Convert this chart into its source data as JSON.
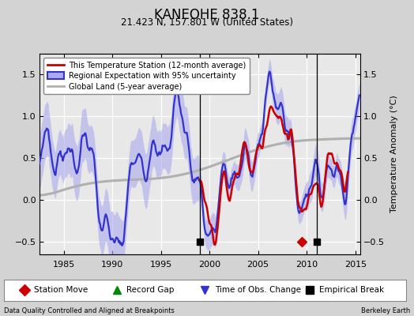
{
  "title": "KANEOHE 838.1",
  "subtitle": "21.423 N, 157.801 W (United States)",
  "ylabel": "Temperature Anomaly (°C)",
  "xlabel_left": "Data Quality Controlled and Aligned at Breakpoints",
  "xlabel_right": "Berkeley Earth",
  "xlim": [
    1982.5,
    2015.5
  ],
  "ylim": [
    -0.65,
    1.75
  ],
  "yticks": [
    -0.5,
    0,
    0.5,
    1.0,
    1.5
  ],
  "xticks": [
    1985,
    1990,
    1995,
    2000,
    2005,
    2010,
    2015
  ],
  "bg_color": "#d3d3d3",
  "plot_bg_color": "#e8e8e8",
  "grid_color": "#ffffff",
  "empirical_breaks": [
    1999.0,
    2011.0
  ],
  "station_moves": [
    2009.5
  ],
  "vertical_lines": [
    1999.0,
    2011.0
  ],
  "regional_color": "#3333cc",
  "regional_band_color": "#aaaaee",
  "station_color": "#cc0000",
  "global_color": "#b0b0b0"
}
